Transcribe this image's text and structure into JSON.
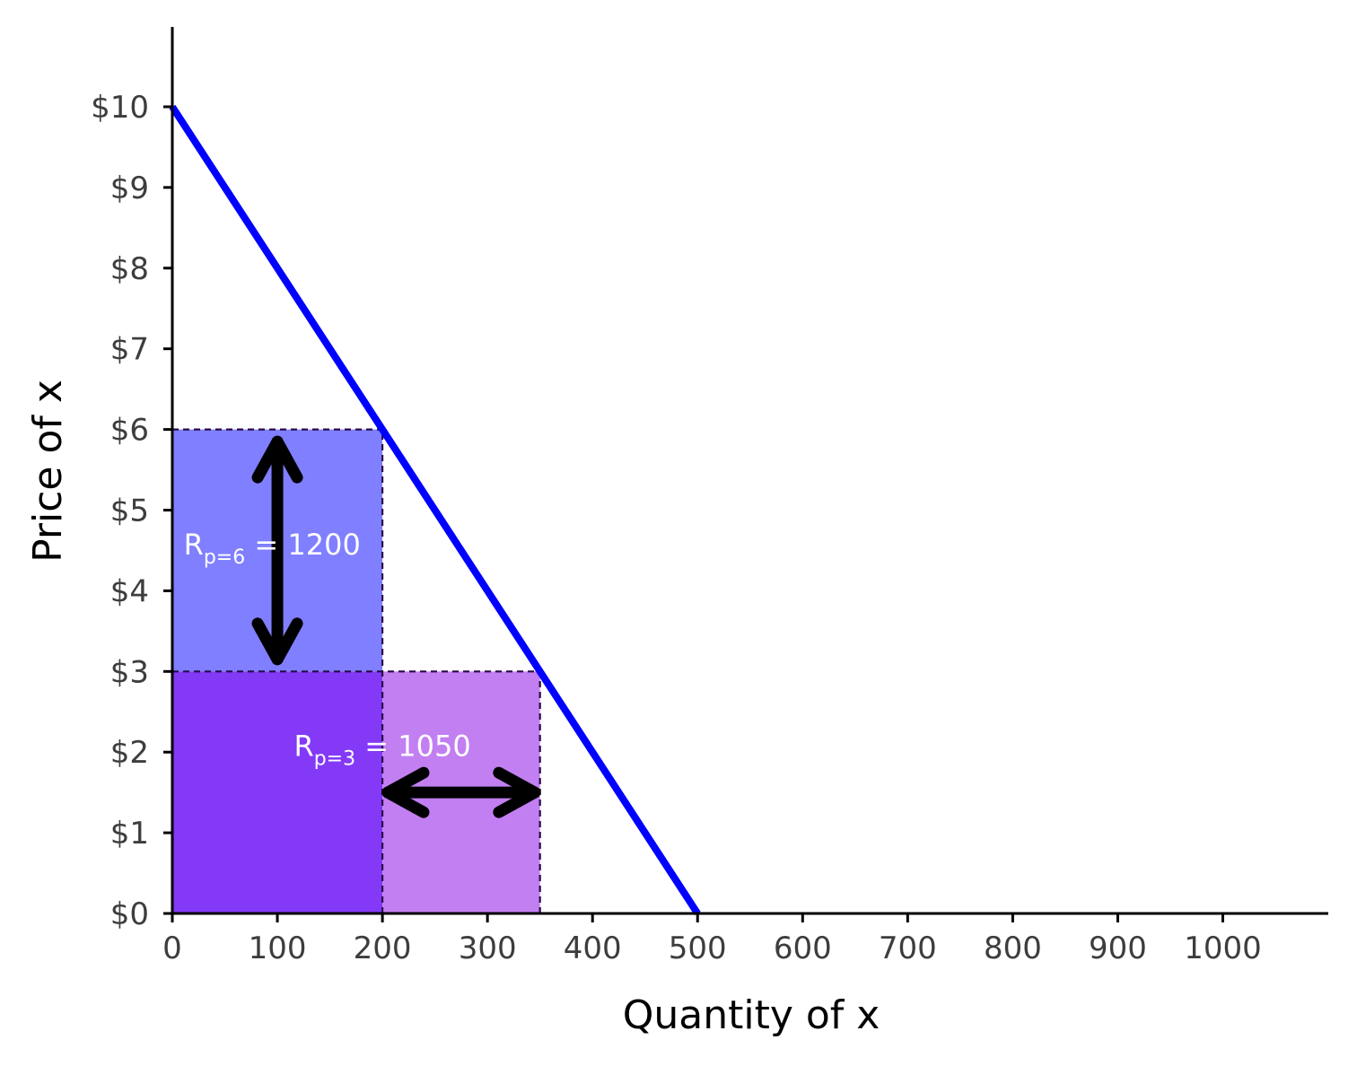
{
  "chart_data": {
    "type": "line",
    "xlabel": "Quantity of x",
    "ylabel": "Price of x",
    "xlim": [
      0,
      1100
    ],
    "ylim": [
      0,
      11
    ],
    "x_ticks": [
      0,
      100,
      200,
      300,
      400,
      500,
      600,
      700,
      800,
      900,
      1000
    ],
    "x_tick_labels": [
      "0",
      "100",
      "200",
      "300",
      "400",
      "500",
      "600",
      "700",
      "800",
      "900",
      "1000"
    ],
    "y_ticks": [
      0,
      1,
      2,
      3,
      4,
      5,
      6,
      7,
      8,
      9,
      10
    ],
    "y_tick_labels": [
      "$0",
      "$1",
      "$2",
      "$3",
      "$4",
      "$5",
      "$6",
      "$7",
      "$8",
      "$9",
      "$10"
    ],
    "grid": false,
    "demand_line": {
      "points": [
        [
          0,
          10
        ],
        [
          500,
          0
        ]
      ],
      "color": "#0000ff"
    },
    "regions": [
      {
        "x": [
          0,
          200
        ],
        "y": [
          3,
          6
        ],
        "color": "#7f7fff"
      },
      {
        "x": [
          0,
          200
        ],
        "y": [
          0,
          3
        ],
        "color": "#8339f5"
      },
      {
        "x": [
          200,
          350
        ],
        "y": [
          0,
          3
        ],
        "color": "#c27ff2"
      }
    ],
    "dashed_lines": [
      {
        "points": [
          [
            0,
            6
          ],
          [
            200,
            6
          ]
        ]
      },
      {
        "points": [
          [
            200,
            0
          ],
          [
            200,
            6
          ]
        ]
      },
      {
        "points": [
          [
            0,
            3
          ],
          [
            350,
            3
          ]
        ]
      },
      {
        "points": [
          [
            350,
            0
          ],
          [
            350,
            3
          ]
        ]
      }
    ],
    "arrows": [
      {
        "from": [
          100,
          5.85
        ],
        "to": [
          100,
          3.15
        ],
        "double": true
      },
      {
        "from": [
          205,
          1.5
        ],
        "to": [
          345,
          1.5
        ],
        "double": true
      }
    ],
    "annotations": [
      {
        "main": "R",
        "sub": "p=6",
        "value": "= 1200",
        "x": 95,
        "y": 4.45
      },
      {
        "main": "R",
        "sub": "p=3",
        "value": "= 1050",
        "x": 200,
        "y": 1.95
      }
    ]
  }
}
